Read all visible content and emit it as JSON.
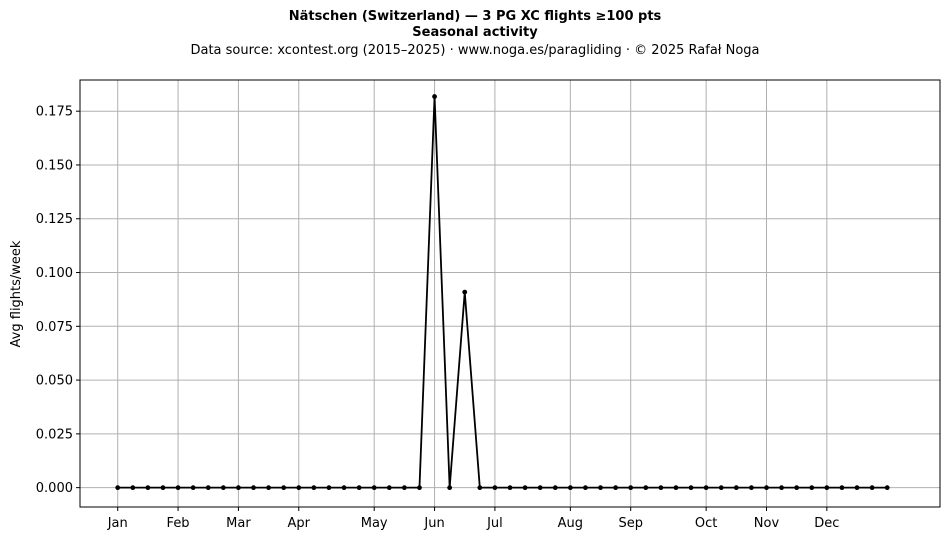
{
  "chart_data": {
    "type": "line",
    "title": "Nätschen (Switzerland)  —  3 PG XC flights ≥100 pts",
    "subtitle": "Seasonal activity",
    "source": "Data source: xcontest.org (2015–2025)  ·  www.noga.es/paragliding  ·  © 2025 Rafał Noga",
    "ylabel": "Avg flights/week",
    "xlabel": "",
    "ylim": [
      -0.009,
      0.1895
    ],
    "yticks": [
      "0.000",
      "0.025",
      "0.050",
      "0.075",
      "0.100",
      "0.125",
      "0.150",
      "0.175"
    ],
    "xlim": [
      -2.5,
      54.5
    ],
    "month_labels": [
      "Jan",
      "Feb",
      "Mar",
      "Apr",
      "May",
      "Jun",
      "Jul",
      "Aug",
      "Sep",
      "Oct",
      "Nov",
      "Dec"
    ],
    "month_weeks": [
      0,
      4,
      8,
      12,
      17,
      21,
      25,
      30,
      34,
      39,
      43,
      47
    ],
    "grid": true,
    "legend": "none",
    "series": [
      {
        "color": "#000000",
        "x": [
          0,
          1,
          2,
          3,
          4,
          5,
          6,
          7,
          8,
          9,
          10,
          11,
          12,
          13,
          14,
          15,
          16,
          17,
          18,
          19,
          20,
          21,
          22,
          23,
          24,
          25,
          26,
          27,
          28,
          29,
          30,
          31,
          32,
          33,
          34,
          35,
          36,
          37,
          38,
          39,
          40,
          41,
          42,
          43,
          44,
          45,
          46,
          47,
          48,
          49,
          50,
          51
        ],
        "values": [
          0,
          0,
          0,
          0,
          0,
          0,
          0,
          0,
          0,
          0,
          0,
          0,
          0,
          0,
          0,
          0,
          0,
          0,
          0,
          0,
          0,
          0.1818,
          0,
          0.0909,
          0,
          0,
          0,
          0,
          0,
          0,
          0,
          0,
          0,
          0,
          0,
          0,
          0,
          0,
          0,
          0,
          0,
          0,
          0,
          0,
          0,
          0,
          0,
          0,
          0,
          0,
          0,
          0
        ]
      }
    ]
  }
}
